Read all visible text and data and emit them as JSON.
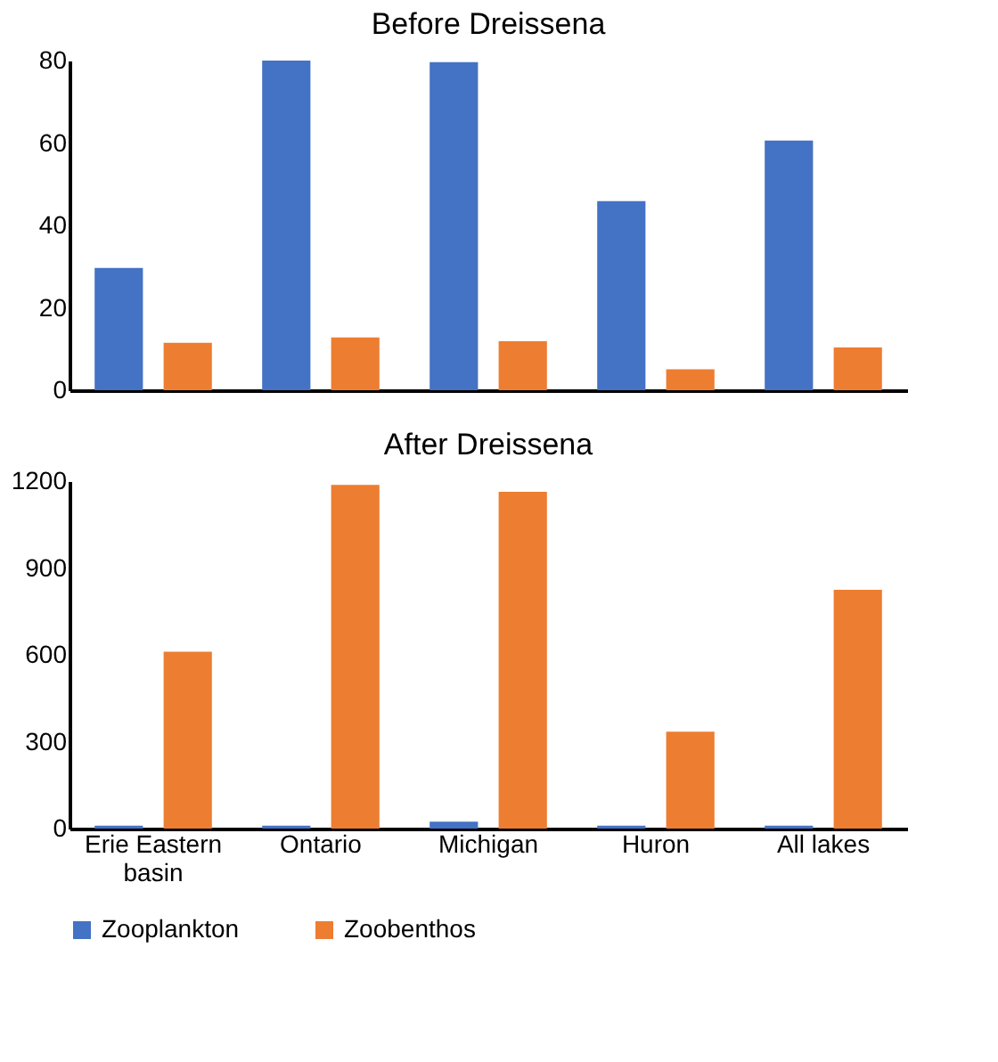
{
  "chart_data": [
    {
      "type": "bar",
      "title": "Before Dreissena",
      "categories": [
        null,
        null,
        null,
        null,
        null
      ],
      "tick_labels": "y",
      "grid": false,
      "ylim": [
        0,
        80
      ],
      "yticks": [
        0,
        20,
        40,
        60,
        80
      ],
      "series": [
        {
          "color": "#4472c4",
          "values": [
            29.7,
            80,
            79.6,
            45.9,
            60.6
          ]
        },
        {
          "color": "#ed7d31",
          "values": [
            11.5,
            12.8,
            11.9,
            5.1,
            10.4
          ]
        }
      ]
    },
    {
      "type": "bar",
      "title": "After Dreissena",
      "categories": [
        "Erie Eastern basin",
        "Ontario",
        "Michigan",
        "Huron",
        "All lakes"
      ],
      "legend": "bottom",
      "grid": false,
      "ylim": [
        0,
        1200
      ],
      "yticks": [
        0,
        300,
        600,
        900,
        1200
      ],
      "series": [
        {
          "name": "Zooplankton",
          "color": "#4472c4",
          "values": [
            10,
            10,
            24,
            10,
            10
          ]
        },
        {
          "name": "Zoobenthos",
          "color": "#ed7d31",
          "values": [
            611,
            1187,
            1163,
            335,
            825
          ]
        }
      ]
    }
  ]
}
